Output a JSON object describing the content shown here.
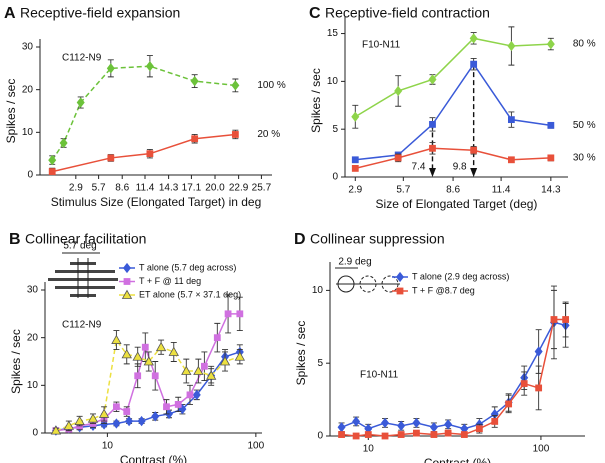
{
  "chart_data": [
    {
      "type": "line",
      "panel": "A",
      "title": "Receptive-field expansion",
      "label": "C112-N9",
      "xlabel": "Stimulus Size (Elongated Target) in deg",
      "ylabel": "Spikes / sec",
      "xlim": [
        -1.5,
        27
      ],
      "xticks": [
        2.9,
        5.7,
        8.6,
        11.4,
        14.3,
        17.1,
        {
          "value": 20,
          "label": "20.0"
        },
        22.9,
        25.7
      ],
      "ylim": [
        0,
        30
      ],
      "yticks": [
        0,
        10,
        20,
        30
      ],
      "legend": "end",
      "series": [
        {
          "name": "100 %",
          "color": "#6cc23a",
          "marker": "diamond",
          "dashed": true,
          "x": [
            0,
            1.4,
            3.5,
            7.2,
            12,
            17.5,
            22.5
          ],
          "values": [
            3.5,
            7.5,
            17,
            25,
            25.5,
            22,
            21
          ],
          "errors": [
            1,
            1,
            1.3,
            2,
            2.5,
            1.5,
            1.5
          ]
        },
        {
          "name": "20 %",
          "color": "#e8503a",
          "marker": "square",
          "x": [
            0,
            7.2,
            12,
            17.5,
            22.5
          ],
          "values": [
            0.8,
            4,
            5,
            8.5,
            9.5
          ],
          "errors": [
            0.8,
            0.8,
            1,
            1,
            1
          ]
        }
      ]
    },
    {
      "type": "line",
      "panel": "B",
      "title": "Collinear facilitation",
      "label": "C112-N9",
      "inset_label": "5.7 deg",
      "xlabel": "Contrast (%)",
      "ylabel": "Spikes / sec",
      "xscale": "log",
      "xlim": [
        3.8,
        110
      ],
      "xticks": [
        10,
        100
      ],
      "ylim": [
        0,
        30
      ],
      "yticks": [
        0,
        10,
        20,
        30
      ],
      "legend": "upper-right",
      "series": [
        {
          "name": "T alone (5.7 deg across)",
          "color": "#3a5ad8",
          "marker": "diamond",
          "x": [
            4.5,
            5.5,
            6.5,
            8,
            9.5,
            11.5,
            14,
            17,
            21,
            26,
            32,
            40,
            50,
            62,
            78
          ],
          "values": [
            0.5,
            1,
            1.2,
            1.5,
            1.8,
            2,
            2.5,
            2.5,
            3.5,
            4,
            5,
            8,
            12,
            16,
            17
          ],
          "errors": [
            0.5,
            0.5,
            0.5,
            0.5,
            0.5,
            0.5,
            0.5,
            0.5,
            0.8,
            0.8,
            1,
            1,
            1.5,
            1.5,
            1.5
          ]
        },
        {
          "name": "T + F @ 11 deg",
          "color": "#d070e0",
          "marker": "square",
          "x": [
            4.5,
            5.5,
            6.5,
            8,
            9.5,
            11.5,
            13.5,
            16,
            18,
            21,
            25,
            30,
            36,
            45,
            55,
            65,
            78
          ],
          "values": [
            0.5,
            0.8,
            1.5,
            2,
            3,
            5.5,
            4.5,
            12,
            18,
            12,
            5.5,
            6,
            8,
            14,
            20,
            25,
            25
          ],
          "errors": [
            0.5,
            0.5,
            0.8,
            0.8,
            1,
            1,
            1,
            2.5,
            3,
            3,
            1.5,
            1.5,
            2,
            3,
            3,
            4,
            3.5
          ]
        },
        {
          "name": "ET alone (5.7 × 37.1 deg)",
          "color": "#ece040",
          "marker": "triangle",
          "dashed": true,
          "x": [
            4.5,
            5.5,
            6.5,
            8,
            9.5,
            11.5,
            13.5,
            16,
            19,
            23,
            28,
            34,
            41,
            50,
            62,
            78
          ],
          "values": [
            0.5,
            1.5,
            2.5,
            3,
            4,
            19.5,
            16.5,
            16,
            15,
            18,
            17,
            13,
            13,
            12,
            15,
            16
          ],
          "errors": [
            0.5,
            1,
            1,
            1,
            1.5,
            2,
            2,
            2,
            2,
            1.5,
            2,
            2.5,
            2.5,
            2,
            2,
            1.5
          ]
        }
      ]
    },
    {
      "type": "line",
      "panel": "C",
      "title": "Receptive-field contraction",
      "label": "F10-N11",
      "xlabel": "Size of Elongated Target (deg)",
      "ylabel": "Spikes / sec",
      "xlim": [
        2.3,
        15.3
      ],
      "xticks": [
        2.9,
        5.7,
        8.6,
        11.4,
        14.3
      ],
      "ylim": [
        0,
        16
      ],
      "yticks": [
        0,
        5,
        10,
        15
      ],
      "legend": "end",
      "annotations": [
        7.4,
        9.8
      ],
      "x": [
        2.9,
        5.4,
        7.4,
        9.8,
        12,
        14.3
      ],
      "series": [
        {
          "name": "80 %",
          "color": "#8ed44a",
          "marker": "diamond",
          "values": [
            6.3,
            9,
            10.2,
            14.5,
            13.7,
            13.9
          ],
          "errors": [
            1.2,
            1.6,
            0.5,
            0.6,
            2,
            0.6
          ]
        },
        {
          "name": "50 %",
          "color": "#3a5ad8",
          "marker": "square",
          "values": [
            1.8,
            2.3,
            5.5,
            11.8,
            6,
            5.4
          ],
          "errors": [
            0.2,
            0.3,
            0.7,
            0.6,
            0.8,
            0.3
          ]
        },
        {
          "name": "30 %",
          "color": "#e8503a",
          "marker": "square",
          "values": [
            0.9,
            2,
            3,
            2.8,
            1.8,
            2
          ],
          "errors": [
            0.1,
            0.4,
            0.6,
            0.4,
            0.2,
            0.3
          ]
        }
      ]
    },
    {
      "type": "line",
      "panel": "D",
      "title": "Collinear suppression",
      "label": "F10-N11",
      "inset_label": "2.9 deg",
      "xlabel": "Contrast (%)",
      "ylabel": "Spikes / sec",
      "xscale": "log",
      "xlim": [
        6,
        180
      ],
      "xticks": [
        10,
        100
      ],
      "ylim": [
        0,
        11.4
      ],
      "yticks": [
        0,
        5,
        10
      ],
      "legend": "upper-left",
      "x": [
        7,
        8.5,
        10,
        12.5,
        15.5,
        19,
        24,
        29,
        36,
        44,
        54,
        65,
        80,
        97,
        119,
        139
      ],
      "series": [
        {
          "name": "T alone (2.9 deg across)",
          "color": "#3a5ad8",
          "marker": "diamond",
          "values": [
            0.6,
            1,
            0.5,
            0.9,
            0.7,
            0.9,
            0.6,
            0.8,
            0.5,
            0.8,
            1.5,
            2.3,
            4,
            5.8,
            7.8,
            7.6
          ],
          "errors": [
            0.3,
            0.3,
            0.3,
            0.3,
            0.3,
            0.3,
            0.3,
            0.3,
            0.3,
            0.4,
            0.5,
            0.6,
            0.8,
            1.5,
            2.5,
            1.5
          ]
        },
        {
          "name": "T + F @8.7 deg",
          "color": "#e8503a",
          "marker": "square",
          "values": [
            0.1,
            0,
            0.1,
            0,
            0.1,
            0.2,
            0.1,
            0.2,
            0.1,
            0.5,
            1,
            2.2,
            3.6,
            3.3,
            8,
            8
          ],
          "errors": [
            0.1,
            0.1,
            0.1,
            0.1,
            0.1,
            0.1,
            0.1,
            0.1,
            0.1,
            0.3,
            0.4,
            0.6,
            0.8,
            1.5,
            2,
            1.2
          ]
        }
      ]
    }
  ]
}
